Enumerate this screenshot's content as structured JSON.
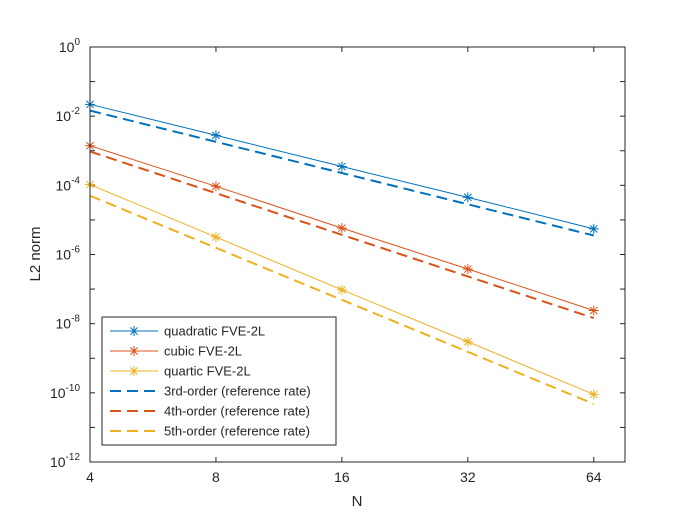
{
  "chart_data": {
    "type": "line",
    "title": "",
    "xlabel": "N",
    "ylabel": "L2  norm",
    "xscale": "log2",
    "yscale": "log10",
    "xlim": [
      4,
      76
    ],
    "ylim": [
      1e-12,
      1
    ],
    "x": [
      4,
      8,
      16,
      32,
      64
    ],
    "x_tick_labels": [
      "4",
      "8",
      "16",
      "32",
      "64"
    ],
    "y_ticks": [
      {
        "base": "10",
        "exp": "0"
      },
      {
        "base": "10",
        "exp": "-2"
      },
      {
        "base": "10",
        "exp": "-4"
      },
      {
        "base": "10",
        "exp": "-6"
      },
      {
        "base": "10",
        "exp": "-8"
      },
      {
        "base": "10",
        "exp": "-10"
      },
      {
        "base": "10",
        "exp": "-12"
      }
    ],
    "legend_position": "bottom-left",
    "series": [
      {
        "name": "quadratic FVE-2L",
        "color": "#0072BD",
        "style": "solid-star",
        "values": [
          0.022,
          0.0028,
          0.00035,
          4.5e-05,
          5.5e-06
        ]
      },
      {
        "name": "cubic FVE-2L",
        "color": "#D95319",
        "style": "solid-star",
        "values": [
          0.0014,
          9.38e-05,
          5.8e-06,
          3.8e-07,
          2.4e-08
        ]
      },
      {
        "name": "quartic FVE-2L",
        "color": "#EDB120",
        "style": "solid-star",
        "values": [
          0.000105,
          3.2e-06,
          9.5e-08,
          3e-09,
          9e-11
        ]
      },
      {
        "name": "3rd-order (reference rate)",
        "color": "#0072BD",
        "style": "dashed",
        "values": [
          0.0145,
          0.00181,
          0.000227,
          2.83e-05,
          3.54e-06
        ]
      },
      {
        "name": "4th-order (reference rate)",
        "color": "#D95319",
        "style": "dashed",
        "values": [
          0.00095,
          5.94e-05,
          3.71e-06,
          2.32e-07,
          1.45e-08
        ]
      },
      {
        "name": "5th-order (reference rate)",
        "color": "#EDB120",
        "style": "dashed",
        "values": [
          5e-05,
          1.56e-06,
          4.88e-08,
          1.53e-09,
          4.77e-11
        ]
      }
    ]
  }
}
